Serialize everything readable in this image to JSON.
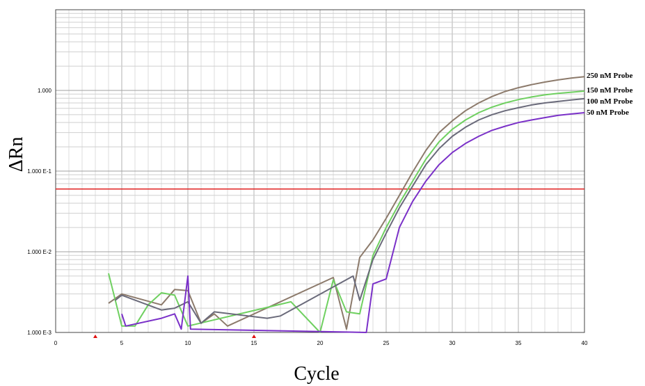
{
  "chart_data": {
    "type": "line",
    "xlabel": "Cycle",
    "ylabel": "ΔRn",
    "x_scale": "linear",
    "y_scale": "log",
    "xlim": [
      0,
      40
    ],
    "ylim": [
      0.001,
      10
    ],
    "x_ticks": [
      "0",
      "5",
      "10",
      "15",
      "20",
      "25",
      "30",
      "35",
      "40"
    ],
    "y_ticks": [
      "1.000 E-3",
      "1.000 E-2",
      "1.000 E-1",
      "1.000"
    ],
    "grid": true,
    "threshold": {
      "value": 0.06,
      "color": "#e02020"
    },
    "baseline_markers": [
      3,
      15
    ],
    "legend_position": "right, at curve ends",
    "series": [
      {
        "name": "250 nM Probe",
        "color": "#8c7a6b",
        "points": [
          [
            4,
            0.0023
          ],
          [
            5,
            0.003
          ],
          [
            8,
            0.0022
          ],
          [
            9,
            0.0034
          ],
          [
            10,
            0.0033
          ],
          [
            11,
            0.0013
          ],
          [
            12,
            0.0017
          ],
          [
            13,
            0.0012
          ],
          [
            21,
            0.0048
          ],
          [
            22,
            0.0011
          ],
          [
            23,
            0.0085
          ],
          [
            24,
            0.014
          ],
          [
            25,
            0.026
          ],
          [
            26,
            0.05
          ],
          [
            27,
            0.097
          ],
          [
            28,
            0.18
          ],
          [
            29,
            0.3
          ],
          [
            30,
            0.42
          ],
          [
            31,
            0.56
          ],
          [
            32,
            0.7
          ],
          [
            33,
            0.84
          ],
          [
            34,
            0.97
          ],
          [
            35,
            1.08
          ],
          [
            36,
            1.18
          ],
          [
            37,
            1.27
          ],
          [
            38,
            1.35
          ],
          [
            39,
            1.42
          ],
          [
            40,
            1.48
          ]
        ]
      },
      {
        "name": "150 nM Probe",
        "color": "#6fd060",
        "points": [
          [
            4,
            0.0054
          ],
          [
            5,
            0.0012
          ],
          [
            6,
            0.0012
          ],
          [
            7,
            0.0022
          ],
          [
            8,
            0.0031
          ],
          [
            9,
            0.0029
          ],
          [
            10,
            0.0012
          ],
          [
            17.8,
            0.0024
          ],
          [
            20,
            0.001
          ],
          [
            21,
            0.0045
          ],
          [
            22,
            0.0018
          ],
          [
            23,
            0.0017
          ],
          [
            24,
            0.009
          ],
          [
            25,
            0.02
          ],
          [
            26,
            0.04
          ],
          [
            27,
            0.075
          ],
          [
            28,
            0.14
          ],
          [
            29,
            0.23
          ],
          [
            30,
            0.33
          ],
          [
            31,
            0.43
          ],
          [
            32,
            0.53
          ],
          [
            33,
            0.62
          ],
          [
            34,
            0.7
          ],
          [
            35,
            0.77
          ],
          [
            36,
            0.83
          ],
          [
            37,
            0.88
          ],
          [
            38,
            0.92
          ],
          [
            39,
            0.95
          ],
          [
            40,
            0.98
          ]
        ]
      },
      {
        "name": "100 nM Probe",
        "color": "#6a6a7a",
        "points": [
          [
            4.5,
            0.0025
          ],
          [
            5,
            0.0029
          ],
          [
            8,
            0.0019
          ],
          [
            9,
            0.002
          ],
          [
            10,
            0.0024
          ],
          [
            11,
            0.0013
          ],
          [
            12,
            0.0018
          ],
          [
            16,
            0.0015
          ],
          [
            17,
            0.0016
          ],
          [
            22.5,
            0.005
          ],
          [
            23,
            0.0025
          ],
          [
            24,
            0.008
          ],
          [
            25,
            0.017
          ],
          [
            26,
            0.035
          ],
          [
            27,
            0.065
          ],
          [
            28,
            0.12
          ],
          [
            29,
            0.19
          ],
          [
            30,
            0.27
          ],
          [
            31,
            0.35
          ],
          [
            32,
            0.43
          ],
          [
            33,
            0.5
          ],
          [
            34,
            0.56
          ],
          [
            35,
            0.61
          ],
          [
            36,
            0.66
          ],
          [
            37,
            0.7
          ],
          [
            38,
            0.73
          ],
          [
            39,
            0.76
          ],
          [
            40,
            0.79
          ]
        ]
      },
      {
        "name": "50 nM Probe",
        "color": "#7a30c8",
        "points": [
          [
            5,
            0.0017
          ],
          [
            5.3,
            0.0012
          ],
          [
            8,
            0.0015
          ],
          [
            9,
            0.0017
          ],
          [
            9.5,
            0.0011
          ],
          [
            10,
            0.005
          ],
          [
            10.2,
            0.0011
          ],
          [
            23.5,
            0.001
          ],
          [
            24,
            0.004
          ],
          [
            25,
            0.0046
          ],
          [
            26,
            0.02
          ],
          [
            27,
            0.042
          ],
          [
            28,
            0.075
          ],
          [
            29,
            0.12
          ],
          [
            30,
            0.17
          ],
          [
            31,
            0.22
          ],
          [
            32,
            0.27
          ],
          [
            33,
            0.32
          ],
          [
            34,
            0.36
          ],
          [
            35,
            0.4
          ],
          [
            36,
            0.43
          ],
          [
            37,
            0.46
          ],
          [
            38,
            0.49
          ],
          [
            39,
            0.51
          ],
          [
            40,
            0.53
          ]
        ]
      }
    ]
  }
}
